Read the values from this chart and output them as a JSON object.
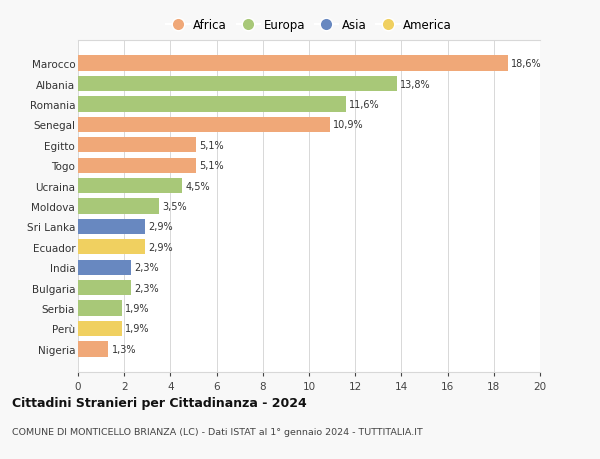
{
  "countries": [
    "Marocco",
    "Albania",
    "Romania",
    "Senegal",
    "Egitto",
    "Togo",
    "Ucraina",
    "Moldova",
    "Sri Lanka",
    "Ecuador",
    "India",
    "Bulgaria",
    "Serbia",
    "Perù",
    "Nigeria"
  ],
  "values": [
    18.6,
    13.8,
    11.6,
    10.9,
    5.1,
    5.1,
    4.5,
    3.5,
    2.9,
    2.9,
    2.3,
    2.3,
    1.9,
    1.9,
    1.3
  ],
  "labels": [
    "18,6%",
    "13,8%",
    "11,6%",
    "10,9%",
    "5,1%",
    "5,1%",
    "4,5%",
    "3,5%",
    "2,9%",
    "2,9%",
    "2,3%",
    "2,3%",
    "1,9%",
    "1,9%",
    "1,3%"
  ],
  "continents": [
    "Africa",
    "Europa",
    "Europa",
    "Africa",
    "Africa",
    "Africa",
    "Europa",
    "Europa",
    "Asia",
    "America",
    "Asia",
    "Europa",
    "Europa",
    "America",
    "Africa"
  ],
  "colors": {
    "Africa": "#F0A878",
    "Europa": "#A8C878",
    "Asia": "#6888C0",
    "America": "#F0D060"
  },
  "legend_order": [
    "Africa",
    "Europa",
    "Asia",
    "America"
  ],
  "title1": "Cittadini Stranieri per Cittadinanza - 2024",
  "title2": "COMUNE DI MONTICELLO BRIANZA (LC) - Dati ISTAT al 1° gennaio 2024 - TUTTITALIA.IT",
  "xlim": [
    0,
    20
  ],
  "xticks": [
    0,
    2,
    4,
    6,
    8,
    10,
    12,
    14,
    16,
    18,
    20
  ],
  "background_color": "#f8f8f8",
  "plot_bg_color": "#ffffff",
  "grid_color": "#d8d8d8"
}
